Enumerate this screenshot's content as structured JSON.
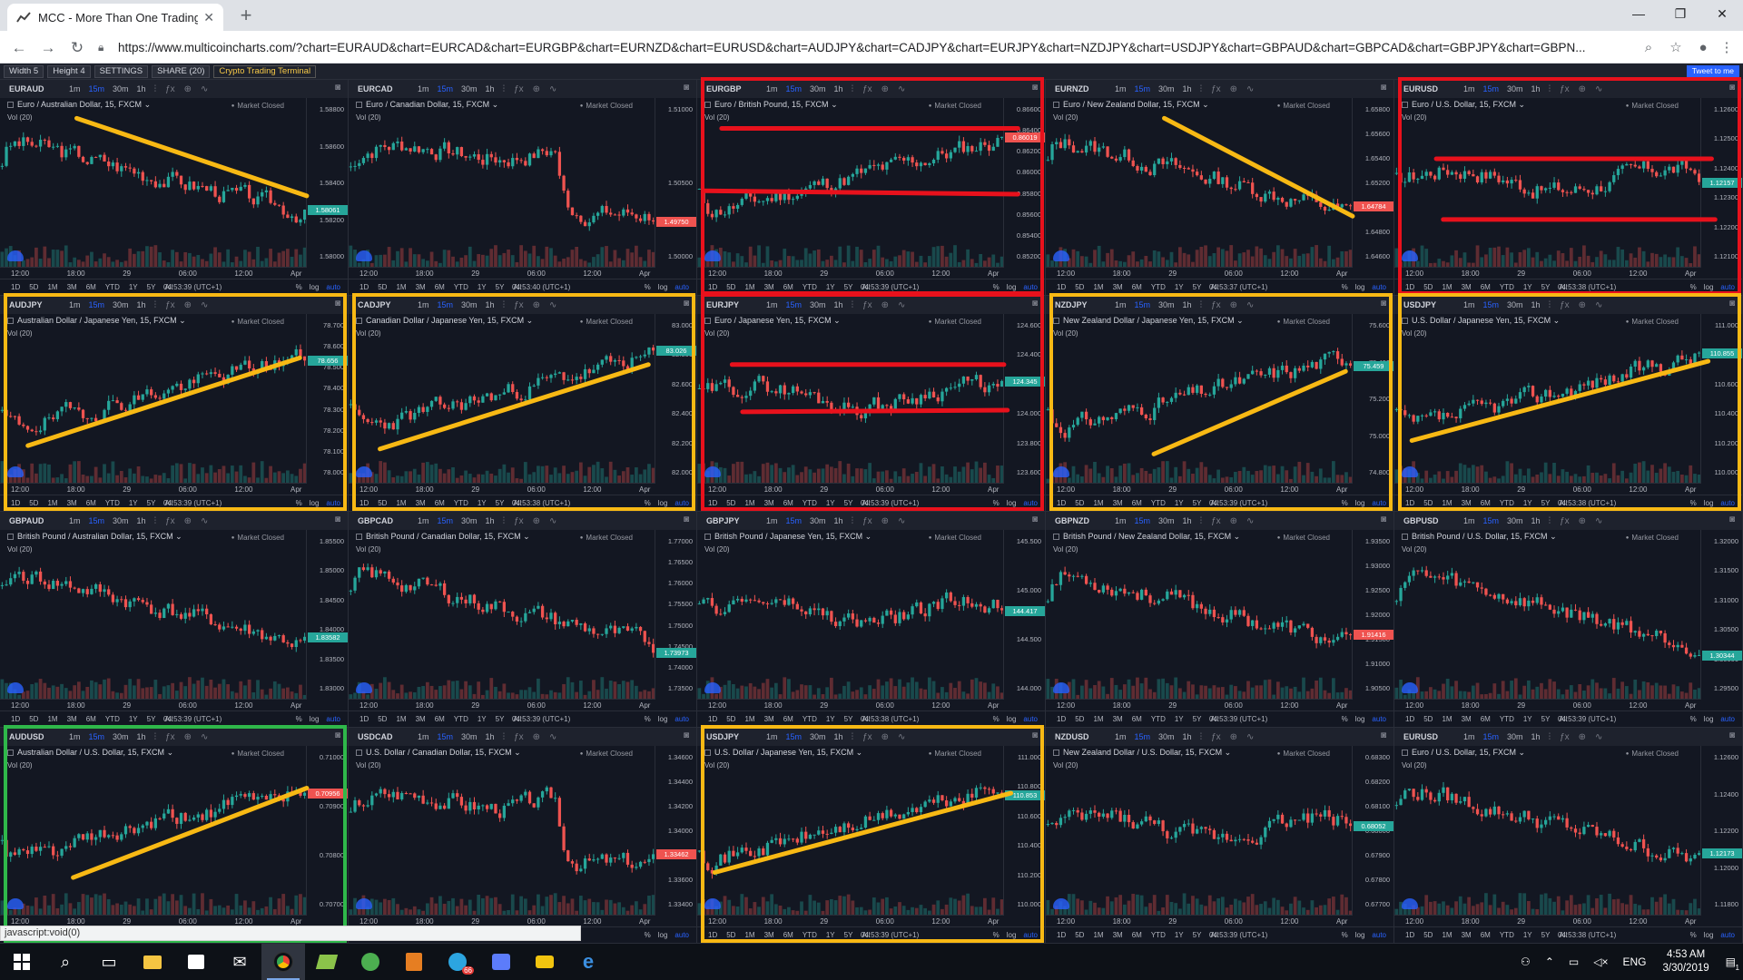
{
  "browser": {
    "tab_title": "MCC - More Than One TradingVi",
    "tab_close": "✕",
    "new_tab": "+",
    "minimize": "—",
    "maximize": "❐",
    "close": "✕",
    "back": "←",
    "forward": "→",
    "reload": "↻",
    "url": "https://www.multicoincharts.com/?chart=EURAUD&chart=EURCAD&chart=EURGBP&chart=EURNZD&chart=EURUSD&chart=AUDJPY&chart=CADJPY&chart=EURJPY&chart=NZDJPY&chart=USDJPY&chart=GBPAUD&chart=GBPCAD&chart=GBPJPY&chart=GBPN...",
    "zoom_icon": "⌕",
    "star_icon": "☆",
    "account_icon": "●",
    "menu_icon": "⋮"
  },
  "toolbar": {
    "width": "Width 5",
    "height": "Height 4",
    "settings": "SETTINGS",
    "share": "SHARE (20)",
    "crypto": "Crypto Trading Terminal",
    "tweet": "Tweet to me"
  },
  "chart_common": {
    "timeframes": [
      "1m",
      "15m",
      "30m",
      "1h"
    ],
    "active_timeframe": "15m",
    "market_closed": "Market Closed",
    "vol": "Vol (20)",
    "ranges": [
      "1D",
      "5D",
      "1M",
      "3M",
      "6M",
      "YTD",
      "1Y",
      "5Y",
      "All"
    ],
    "percent": "%",
    "log": "log",
    "auto": "auto"
  },
  "charts": [
    {
      "symbol": "EURAUD",
      "title": "Euro / Australian Dollar, 15, FXCM",
      "prices": [
        "1.58800",
        "1.58600",
        "1.58400",
        "1.58200",
        "1.58000"
      ],
      "last": "1.58061",
      "last_up": true,
      "times": [
        "12:00",
        "18:00",
        "29",
        "06:00",
        "12:00",
        "Apr"
      ],
      "clock": "04:53:39 (UTC+1)",
      "trend": "down",
      "seed": 3,
      "annot": {
        "box": "none",
        "lines": [
          [
            "yellow",
            0.22,
            0.12,
            0.88,
            0.58
          ]
        ]
      }
    },
    {
      "symbol": "EURCAD",
      "title": "Euro / Canadian Dollar, 15, FXCM",
      "prices": [
        "1.51000",
        "1.50500",
        "1.50000"
      ],
      "last": "1.49750",
      "last_up": false,
      "times": [
        "12:00",
        "18:00",
        "29",
        "06:00",
        "12:00",
        "Apr"
      ],
      "clock": "04:53:40 (UTC+1)",
      "trend": "drop",
      "seed": 7,
      "annot": {
        "box": "none",
        "lines": []
      }
    },
    {
      "symbol": "EURGBP",
      "title": "Euro / British Pound, 15, FXCM",
      "prices": [
        "0.86600",
        "0.86400",
        "0.86200",
        "0.86000",
        "0.85800",
        "0.85600",
        "0.85400",
        "0.85200"
      ],
      "last": "0.86019",
      "last_up": false,
      "times": [
        "12:00",
        "18:00",
        "29",
        "06:00",
        "12:00",
        "Apr"
      ],
      "clock": "04:53:39 (UTC+1)",
      "trend": "up",
      "seed": 11,
      "annot": {
        "box": "red",
        "lines": [
          [
            "red",
            0.07,
            0.18,
            0.92,
            0.18
          ],
          [
            "red",
            0.02,
            0.55,
            0.92,
            0.57
          ]
        ]
      }
    },
    {
      "symbol": "EURNZD",
      "title": "Euro / New Zealand Dollar, 15, FXCM",
      "prices": [
        "1.65800",
        "1.65600",
        "1.65400",
        "1.65200",
        "1.65000",
        "1.64800",
        "1.64600"
      ],
      "last": "1.64784",
      "last_up": false,
      "times": [
        "12:00",
        "18:00",
        "29",
        "06:00",
        "12:00",
        "Apr"
      ],
      "clock": "04:53:37 (UTC+1)",
      "trend": "down",
      "seed": 13,
      "annot": {
        "box": "none",
        "lines": [
          [
            "yellow",
            0.34,
            0.12,
            0.88,
            0.7
          ]
        ]
      }
    },
    {
      "symbol": "EURUSD",
      "title": "Euro / U.S. Dollar, 15, FXCM",
      "prices": [
        "1.12600",
        "1.12500",
        "1.12400",
        "1.12300",
        "1.12200",
        "1.12100"
      ],
      "last": "1.12157",
      "last_up": true,
      "times": [
        "12:00",
        "18:00",
        "29",
        "06:00",
        "12:00",
        "Apr"
      ],
      "clock": "04:53:38 (UTC+1)",
      "trend": "flat",
      "seed": 17,
      "annot": {
        "box": "red",
        "lines": [
          [
            "red",
            0.12,
            0.36,
            0.91,
            0.36
          ],
          [
            "red",
            0.14,
            0.72,
            0.92,
            0.72
          ]
        ]
      }
    },
    {
      "symbol": "AUDJPY",
      "title": "Australian Dollar / Japanese Yen, 15, FXCM",
      "prices": [
        "78.700",
        "78.600",
        "78.500",
        "78.400",
        "78.300",
        "78.200",
        "78.100",
        "78.000"
      ],
      "last": "78.656",
      "last_up": true,
      "times": [
        "12:00",
        "18:00",
        "29",
        "06:00",
        "12:00",
        "Apr"
      ],
      "clock": "04:53:39 (UTC+1)",
      "trend": "up",
      "seed": 19,
      "annot": {
        "box": "yellow",
        "lines": [
          [
            "yellow",
            0.08,
            0.78,
            0.86,
            0.26
          ]
        ]
      }
    },
    {
      "symbol": "CADJPY",
      "title": "Canadian Dollar / Japanese Yen, 15, FXCM",
      "prices": [
        "83.000",
        "82.800",
        "82.600",
        "82.400",
        "82.200",
        "82.000"
      ],
      "last": "83.026",
      "last_up": true,
      "times": [
        "12:00",
        "18:00",
        "29",
        "06:00",
        "12:00",
        "Apr"
      ],
      "clock": "04:53:38 (UTC+1)",
      "trend": "up",
      "seed": 23,
      "annot": {
        "box": "yellow",
        "lines": [
          [
            "yellow",
            0.09,
            0.8,
            0.86,
            0.3
          ]
        ]
      }
    },
    {
      "symbol": "EURJPY",
      "title": "Euro / Japanese Yen, 15, FXCM",
      "prices": [
        "124.600",
        "124.400",
        "124.200",
        "124.000",
        "123.800",
        "123.600"
      ],
      "last": "124.345",
      "last_up": true,
      "times": [
        "12:00",
        "18:00",
        "29",
        "06:00",
        "12:00",
        "Apr"
      ],
      "clock": "04:53:39 (UTC+1)",
      "trend": "flat",
      "seed": 29,
      "annot": {
        "box": "red",
        "lines": [
          [
            "red",
            0.1,
            0.3,
            0.88,
            0.3
          ],
          [
            "red",
            0.13,
            0.58,
            0.89,
            0.57
          ]
        ]
      }
    },
    {
      "symbol": "NZDJPY",
      "title": "New Zealand Dollar / Japanese Yen, 15, FXCM",
      "prices": [
        "75.600",
        "75.400",
        "75.200",
        "75.000",
        "74.800"
      ],
      "last": "75.459",
      "last_up": true,
      "times": [
        "12:00",
        "18:00",
        "29",
        "06:00",
        "12:00",
        "Apr"
      ],
      "clock": "04:53:39 (UTC+1)",
      "trend": "up",
      "seed": 31,
      "annot": {
        "box": "yellow",
        "lines": [
          [
            "yellow",
            0.31,
            0.83,
            0.86,
            0.34
          ]
        ]
      }
    },
    {
      "symbol": "USDJPY",
      "title": "U.S. Dollar / Japanese Yen, 15, FXCM",
      "prices": [
        "111.000",
        "110.800",
        "110.600",
        "110.400",
        "110.200",
        "110.000"
      ],
      "last": "110.855",
      "last_up": true,
      "times": [
        "12:00",
        "18:00",
        "29",
        "06:00",
        "12:00",
        "Apr"
      ],
      "clock": "04:53:38 (UTC+1)",
      "trend": "up",
      "seed": 37,
      "annot": {
        "box": "yellow",
        "lines": [
          [
            "yellow",
            0.05,
            0.75,
            0.9,
            0.28
          ]
        ]
      }
    },
    {
      "symbol": "GBPAUD",
      "title": "British Pound / Australian Dollar, 15, FXCM",
      "prices": [
        "1.85500",
        "1.85000",
        "1.84500",
        "1.84000",
        "1.83500",
        "1.83000"
      ],
      "last": "1.83582",
      "last_up": true,
      "times": [
        "12:00",
        "18:00",
        "29",
        "06:00",
        "12:00",
        "Apr"
      ],
      "clock": "04:53:39 (UTC+1)",
      "trend": "down",
      "seed": 41,
      "annot": {
        "box": "none",
        "lines": []
      }
    },
    {
      "symbol": "GBPCAD",
      "title": "British Pound / Canadian Dollar, 15, FXCM",
      "prices": [
        "1.77000",
        "1.76500",
        "1.76000",
        "1.75500",
        "1.75000",
        "1.74500",
        "1.74000",
        "1.73500"
      ],
      "last": "1.73973",
      "last_up": true,
      "times": [
        "12:00",
        "18:00",
        "29",
        "06:00",
        "12:00",
        "Apr"
      ],
      "clock": "04:53:39 (UTC+1)",
      "trend": "down",
      "seed": 43,
      "annot": {
        "box": "none",
        "lines": []
      }
    },
    {
      "symbol": "GBPJPY",
      "title": "British Pound / Japanese Yen, 15, FXCM",
      "prices": [
        "145.500",
        "145.000",
        "144.500",
        "144.000"
      ],
      "last": "144.417",
      "last_up": true,
      "times": [
        "12:00",
        "18:00",
        "29",
        "06:00",
        "12:00",
        "Apr"
      ],
      "clock": "04:53:38 (UTC+1)",
      "trend": "flat",
      "seed": 47,
      "annot": {
        "box": "none",
        "lines": []
      }
    },
    {
      "symbol": "GBPNZD",
      "title": "British Pound / New Zealand Dollar, 15, FXCM",
      "prices": [
        "1.93500",
        "1.93000",
        "1.92500",
        "1.92000",
        "1.91500",
        "1.91000",
        "1.90500"
      ],
      "last": "1.91416",
      "last_up": false,
      "times": [
        "12:00",
        "18:00",
        "29",
        "06:00",
        "12:00",
        "Apr"
      ],
      "clock": "04:53:39 (UTC+1)",
      "trend": "down",
      "seed": 53,
      "annot": {
        "box": "none",
        "lines": []
      }
    },
    {
      "symbol": "GBPUSD",
      "title": "British Pound / U.S. Dollar, 15, FXCM",
      "prices": [
        "1.32000",
        "1.31500",
        "1.31000",
        "1.30500",
        "1.30000",
        "1.29500"
      ],
      "last": "1.30344",
      "last_up": true,
      "times": [
        "12:00",
        "18:00",
        "29",
        "06:00",
        "12:00",
        "Apr"
      ],
      "clock": "04:53:39 (UTC+1)",
      "trend": "down",
      "seed": 59,
      "annot": {
        "box": "none",
        "lines": []
      }
    },
    {
      "symbol": "AUDUSD",
      "title": "Australian Dollar / U.S. Dollar, 15, FXCM",
      "prices": [
        "0.71000",
        "0.70900",
        "0.70800",
        "0.70700"
      ],
      "last": "0.70956",
      "last_up": false,
      "times": [
        "12:00",
        "18:00",
        "29",
        "06:00",
        "12:00",
        "Apr"
      ],
      "clock": "04:53:39 (UTC+1)",
      "trend": "up",
      "seed": 61,
      "annot": {
        "box": "green",
        "lines": [
          [
            "yellow",
            0.21,
            0.78,
            0.88,
            0.25
          ]
        ]
      }
    },
    {
      "symbol": "USDCAD",
      "title": "U.S. Dollar / Canadian Dollar, 15, FXCM",
      "prices": [
        "1.34600",
        "1.34400",
        "1.34200",
        "1.34000",
        "1.33800",
        "1.33600",
        "1.33400"
      ],
      "last": "1.33462",
      "last_up": false,
      "times": [
        "12:00",
        "18:00",
        "29",
        "06:00",
        "12:00",
        "Apr"
      ],
      "clock": "04:53:39 (UTC+1)",
      "trend": "drop",
      "seed": 67,
      "annot": {
        "box": "none",
        "lines": []
      }
    },
    {
      "symbol": "USDJPY",
      "title": "U.S. Dollar / Japanese Yen, 15, FXCM",
      "prices": [
        "111.000",
        "110.800",
        "110.600",
        "110.400",
        "110.200",
        "110.000"
      ],
      "last": "110.853",
      "last_up": true,
      "times": [
        "12:00",
        "18:00",
        "29",
        "06:00",
        "12:00",
        "Apr"
      ],
      "clock": "04:53:39 (UTC+1)",
      "trend": "up",
      "seed": 71,
      "annot": {
        "box": "yellow",
        "lines": [
          [
            "yellow",
            0.05,
            0.75,
            0.9,
            0.28
          ]
        ]
      }
    },
    {
      "symbol": "NZDUSD",
      "title": "New Zealand Dollar / U.S. Dollar, 15, FXCM",
      "prices": [
        "0.68300",
        "0.68200",
        "0.68100",
        "0.68000",
        "0.67900",
        "0.67800",
        "0.67700"
      ],
      "last": "0.68052",
      "last_up": true,
      "times": [
        "12:00",
        "18:00",
        "29",
        "06:00",
        "12:00",
        "Apr"
      ],
      "clock": "04:53:39 (UTC+1)",
      "trend": "flat",
      "seed": 73,
      "annot": {
        "box": "none",
        "lines": []
      }
    },
    {
      "symbol": "EURUSD",
      "title": "Euro / U.S. Dollar, 15, FXCM",
      "prices": [
        "1.12600",
        "1.12400",
        "1.12200",
        "1.12000",
        "1.11800"
      ],
      "last": "1.12173",
      "last_up": true,
      "times": [
        "12:00",
        "18:00",
        "29",
        "06:00",
        "12:00",
        "Apr"
      ],
      "clock": "04:53:38 (UTC+1)",
      "trend": "down",
      "seed": 79,
      "annot": {
        "box": "none",
        "lines": []
      }
    }
  ],
  "status": "javascript:void(0)",
  "taskbar": {
    "lang": "ENG",
    "time": "4:53 AM",
    "date": "3/30/2019",
    "badge": "66",
    "notif": "1"
  }
}
